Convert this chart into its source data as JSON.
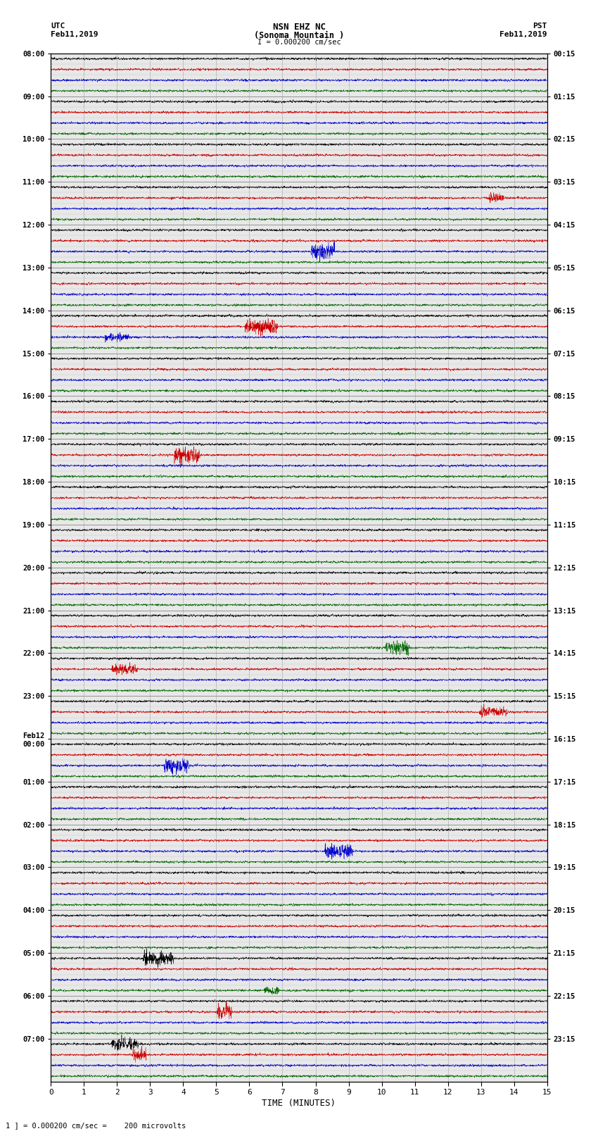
{
  "title_line1": "NSN EHZ NC",
  "title_line2": "(Sonoma Mountain )",
  "title_line3": "I = 0.000200 cm/sec",
  "left_label_line1": "UTC",
  "left_label_line2": "Feb11,2019",
  "right_label_line1": "PST",
  "right_label_line2": "Feb11,2019",
  "xlabel": "TIME (MINUTES)",
  "footnote": "1 ] = 0.000200 cm/sec =    200 microvolts",
  "xlim": [
    0,
    15
  ],
  "xticks": [
    0,
    1,
    2,
    3,
    4,
    5,
    6,
    7,
    8,
    9,
    10,
    11,
    12,
    13,
    14,
    15
  ],
  "background_color": "#ffffff",
  "panel_bg": "#e8e8e8",
  "trace_colors": [
    "#000000",
    "#cc0000",
    "#0000cc",
    "#006600"
  ],
  "grid_color": "#999999",
  "utc_labels": [
    "08:00",
    "09:00",
    "10:00",
    "11:00",
    "12:00",
    "13:00",
    "14:00",
    "15:00",
    "16:00",
    "17:00",
    "18:00",
    "19:00",
    "20:00",
    "21:00",
    "22:00",
    "23:00",
    "Feb12\n00:00",
    "01:00",
    "02:00",
    "03:00",
    "04:00",
    "05:00",
    "06:00",
    "07:00"
  ],
  "pst_labels": [
    "00:15",
    "01:15",
    "02:15",
    "03:15",
    "04:15",
    "05:15",
    "06:15",
    "07:15",
    "08:15",
    "09:15",
    "10:15",
    "11:15",
    "12:15",
    "13:15",
    "14:15",
    "15:15",
    "16:15",
    "17:15",
    "18:15",
    "19:15",
    "20:15",
    "21:15",
    "22:15",
    "23:15"
  ],
  "num_hours": 24,
  "traces_per_hour": 4,
  "noise_std": 0.06,
  "noise_freq_factor": 8.0,
  "seed": 12345
}
